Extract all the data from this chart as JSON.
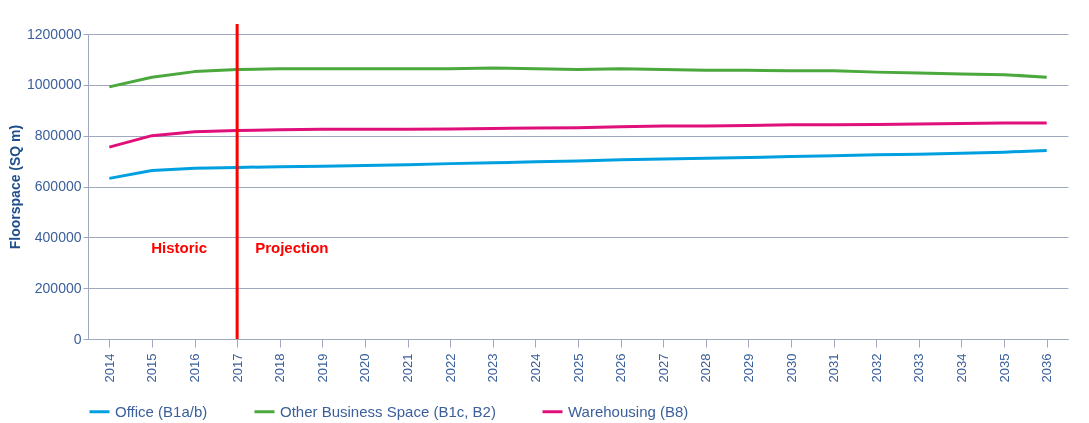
{
  "chart_data": {
    "type": "line",
    "ylabel": "Floorspace (SQ m)",
    "categories": [
      "2014",
      "2015",
      "2016",
      "2017",
      "2018",
      "2019",
      "2020",
      "2021",
      "2022",
      "2023",
      "2024",
      "2025",
      "2026",
      "2027",
      "2028",
      "2029",
      "2030",
      "2031",
      "2032",
      "2033",
      "2034",
      "2035",
      "2036"
    ],
    "series": [
      {
        "name": "Office (B1a/b)",
        "color": "#00a0e0",
        "values": [
          632000,
          663000,
          672000,
          675000,
          678000,
          680000,
          683000,
          686000,
          690000,
          693000,
          697000,
          700000,
          705000,
          708000,
          711000,
          714000,
          718000,
          721000,
          725000,
          727000,
          731000,
          735000,
          742000
        ]
      },
      {
        "name": "Other Business Space (B1c, B2)",
        "color": "#4aa83c",
        "values": [
          992000,
          1030000,
          1052000,
          1060000,
          1063000,
          1063000,
          1063000,
          1063000,
          1063000,
          1066000,
          1063000,
          1060000,
          1063000,
          1060000,
          1057000,
          1057000,
          1055000,
          1055000,
          1050000,
          1047000,
          1043000,
          1040000,
          1030000
        ]
      },
      {
        "name": "Warehousing (B8)",
        "color": "#e0107a",
        "values": [
          755000,
          800000,
          815000,
          820000,
          823000,
          825000,
          825000,
          825000,
          826000,
          828000,
          830000,
          831000,
          835000,
          838000,
          838000,
          840000,
          843000,
          843000,
          844000,
          846000,
          848000,
          850000,
          850000
        ]
      }
    ],
    "ylim": [
      0,
      1200000
    ],
    "yticks": [
      0,
      200000,
      400000,
      600000,
      800000,
      1000000,
      1200000
    ],
    "grid": "y",
    "legend": "bottom",
    "ref_lines": [
      {
        "axis": "x",
        "value": "2017",
        "color": "#ff0000"
      }
    ],
    "annotations": [
      "Historic",
      "Projection"
    ]
  }
}
